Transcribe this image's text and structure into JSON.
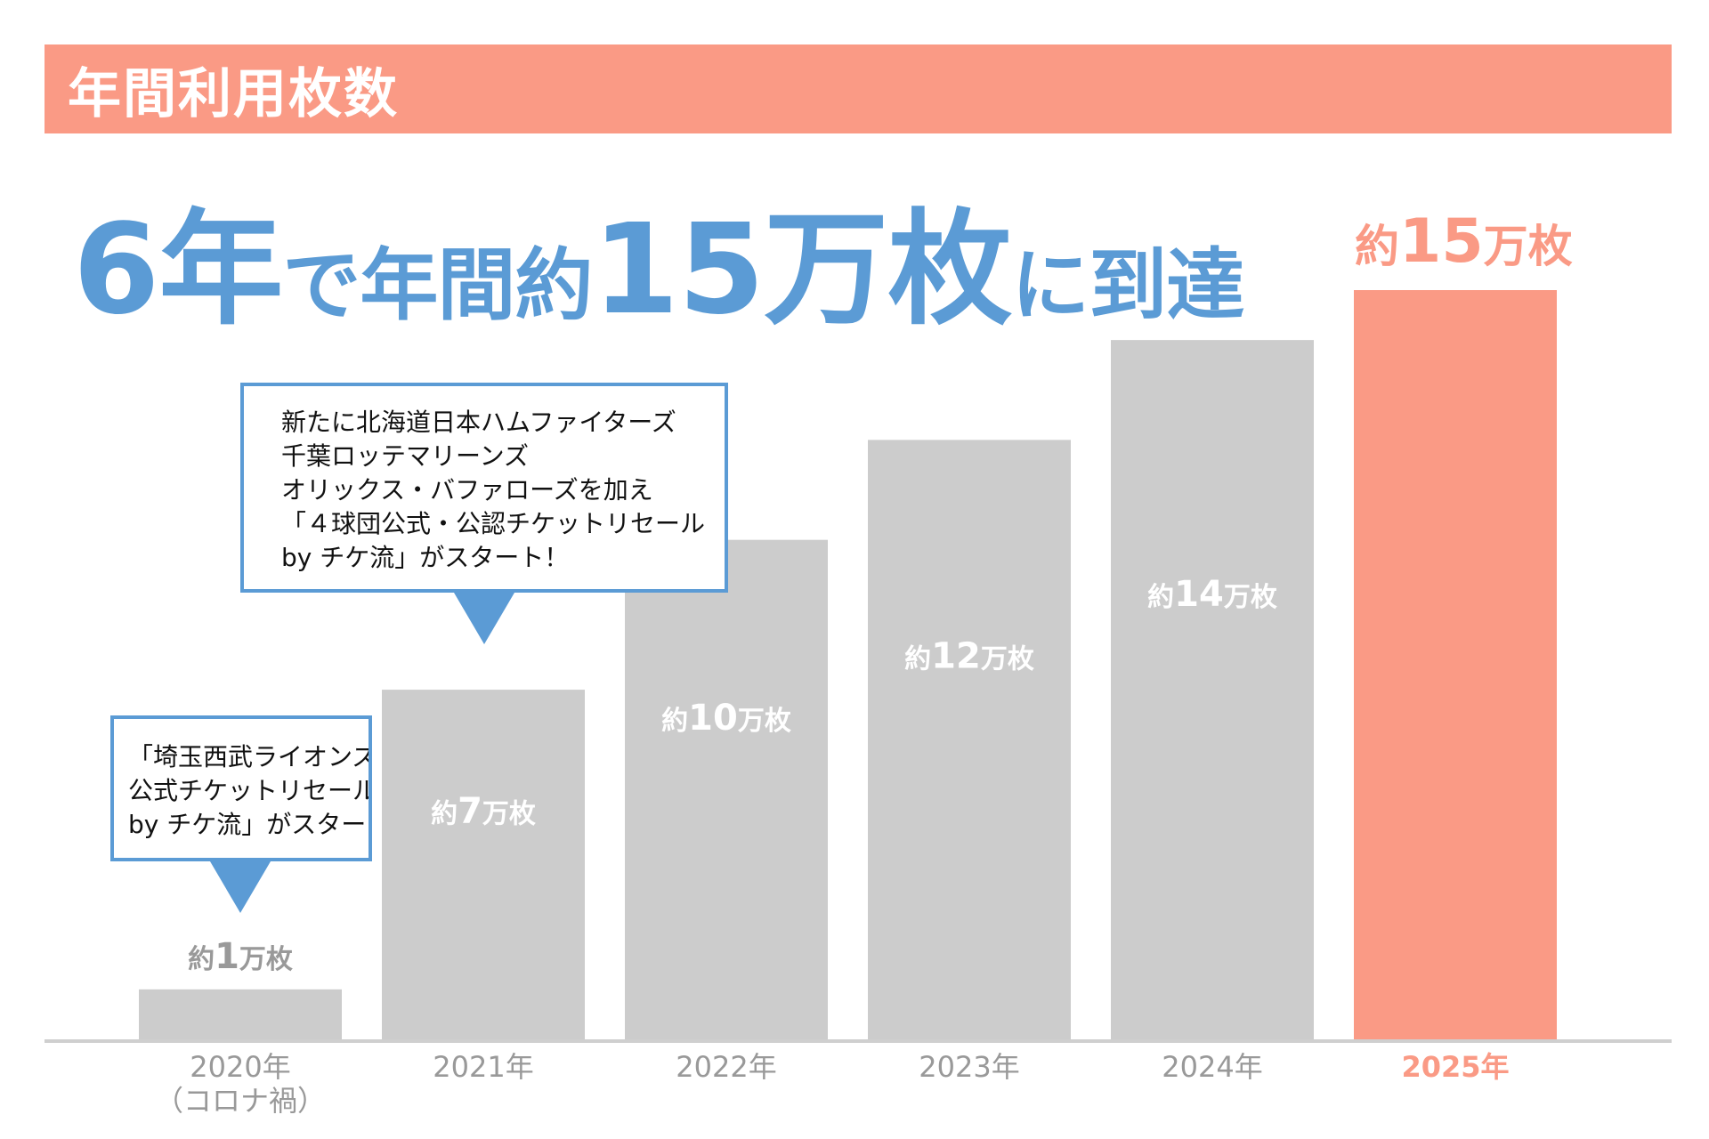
{
  "colors": {
    "accent": "#fa9a85",
    "blue": "#5b9bd5",
    "bar_gray": "#cccccc",
    "label_gray": "#999999",
    "axis": "#cfcfcf",
    "value_on_bar": "#ffffff"
  },
  "header": {
    "title": "年間利用枚数"
  },
  "headline": {
    "p1": "6年",
    "p2": "で年間",
    "p3": "約",
    "p4": "15万枚",
    "p5": "に到達"
  },
  "callouts": [
    {
      "lines": [
        "「埼玉西武ライオンズ",
        "公式チケットリセール",
        "by チケ流」がスタート！"
      ]
    },
    {
      "lines": [
        "新たに北海道日本ハムファイターズ",
        "千葉ロッテマリーンズ",
        "オリックス・バファローズを加え",
        "「４球団公式・公認チケットリセール",
        "by チケ流」がスタート！"
      ]
    }
  ],
  "chart_data": {
    "type": "bar",
    "title": "年間利用枚数",
    "categories": [
      "2020年\n（コロナ禍）",
      "2021年",
      "2022年",
      "2023年",
      "2024年",
      "2025年"
    ],
    "values": [
      1,
      7,
      10,
      12,
      14,
      15
    ],
    "data_labels": [
      {
        "prefix": "約",
        "num": "1",
        "unit": "万枚"
      },
      {
        "prefix": "約",
        "num": "7",
        "unit": "万枚"
      },
      {
        "prefix": "約",
        "num": "10",
        "unit": "万枚"
      },
      {
        "prefix": "約",
        "num": "12",
        "unit": "万枚"
      },
      {
        "prefix": "約",
        "num": "14",
        "unit": "万枚"
      },
      {
        "prefix": "約",
        "num": "15",
        "unit": "万枚"
      }
    ],
    "highlight_index": 5,
    "unit": "万枚",
    "ylim": [
      0,
      15
    ],
    "grid": false,
    "legend": "none"
  }
}
